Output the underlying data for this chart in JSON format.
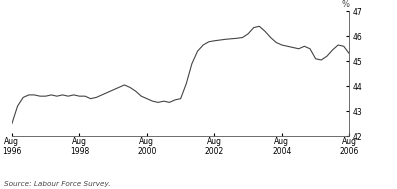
{
  "title": "",
  "ylabel": "%",
  "source": "Source: Labour Force Survey.",
  "ylim": [
    42,
    47
  ],
  "yticks": [
    42,
    43,
    44,
    45,
    46,
    47
  ],
  "xtick_labels": [
    "Aug\n1996",
    "Aug\n1998",
    "Aug\n2000",
    "Aug\n2002",
    "Aug\n2004",
    "Aug\n2006"
  ],
  "xtick_positions": [
    0,
    24,
    48,
    72,
    96,
    120
  ],
  "line_color": "#444444",
  "line_width": 0.8,
  "background_color": "#ffffff",
  "data_x": [
    0,
    2,
    4,
    6,
    8,
    10,
    12,
    14,
    16,
    18,
    20,
    22,
    24,
    26,
    28,
    30,
    32,
    34,
    36,
    38,
    40,
    42,
    44,
    46,
    48,
    50,
    52,
    54,
    56,
    58,
    60,
    62,
    64,
    66,
    68,
    70,
    72,
    74,
    76,
    78,
    80,
    82,
    84,
    86,
    88,
    90,
    92,
    94,
    96,
    98,
    100,
    102,
    104,
    106,
    108,
    110,
    112,
    114,
    116,
    118,
    120
  ],
  "data_y": [
    42.5,
    43.2,
    43.55,
    43.65,
    43.65,
    43.6,
    43.6,
    43.65,
    43.6,
    43.65,
    43.6,
    43.65,
    43.6,
    43.6,
    43.5,
    43.55,
    43.65,
    43.75,
    43.85,
    43.95,
    44.05,
    43.95,
    43.8,
    43.6,
    43.5,
    43.4,
    43.35,
    43.4,
    43.35,
    43.45,
    43.5,
    44.1,
    44.9,
    45.4,
    45.65,
    45.78,
    45.82,
    45.85,
    45.88,
    45.9,
    45.92,
    45.95,
    46.1,
    46.35,
    46.4,
    46.2,
    45.95,
    45.75,
    45.65,
    45.6,
    45.55,
    45.5,
    45.6,
    45.5,
    45.1,
    45.05,
    45.2,
    45.45,
    45.65,
    45.6,
    45.3
  ]
}
